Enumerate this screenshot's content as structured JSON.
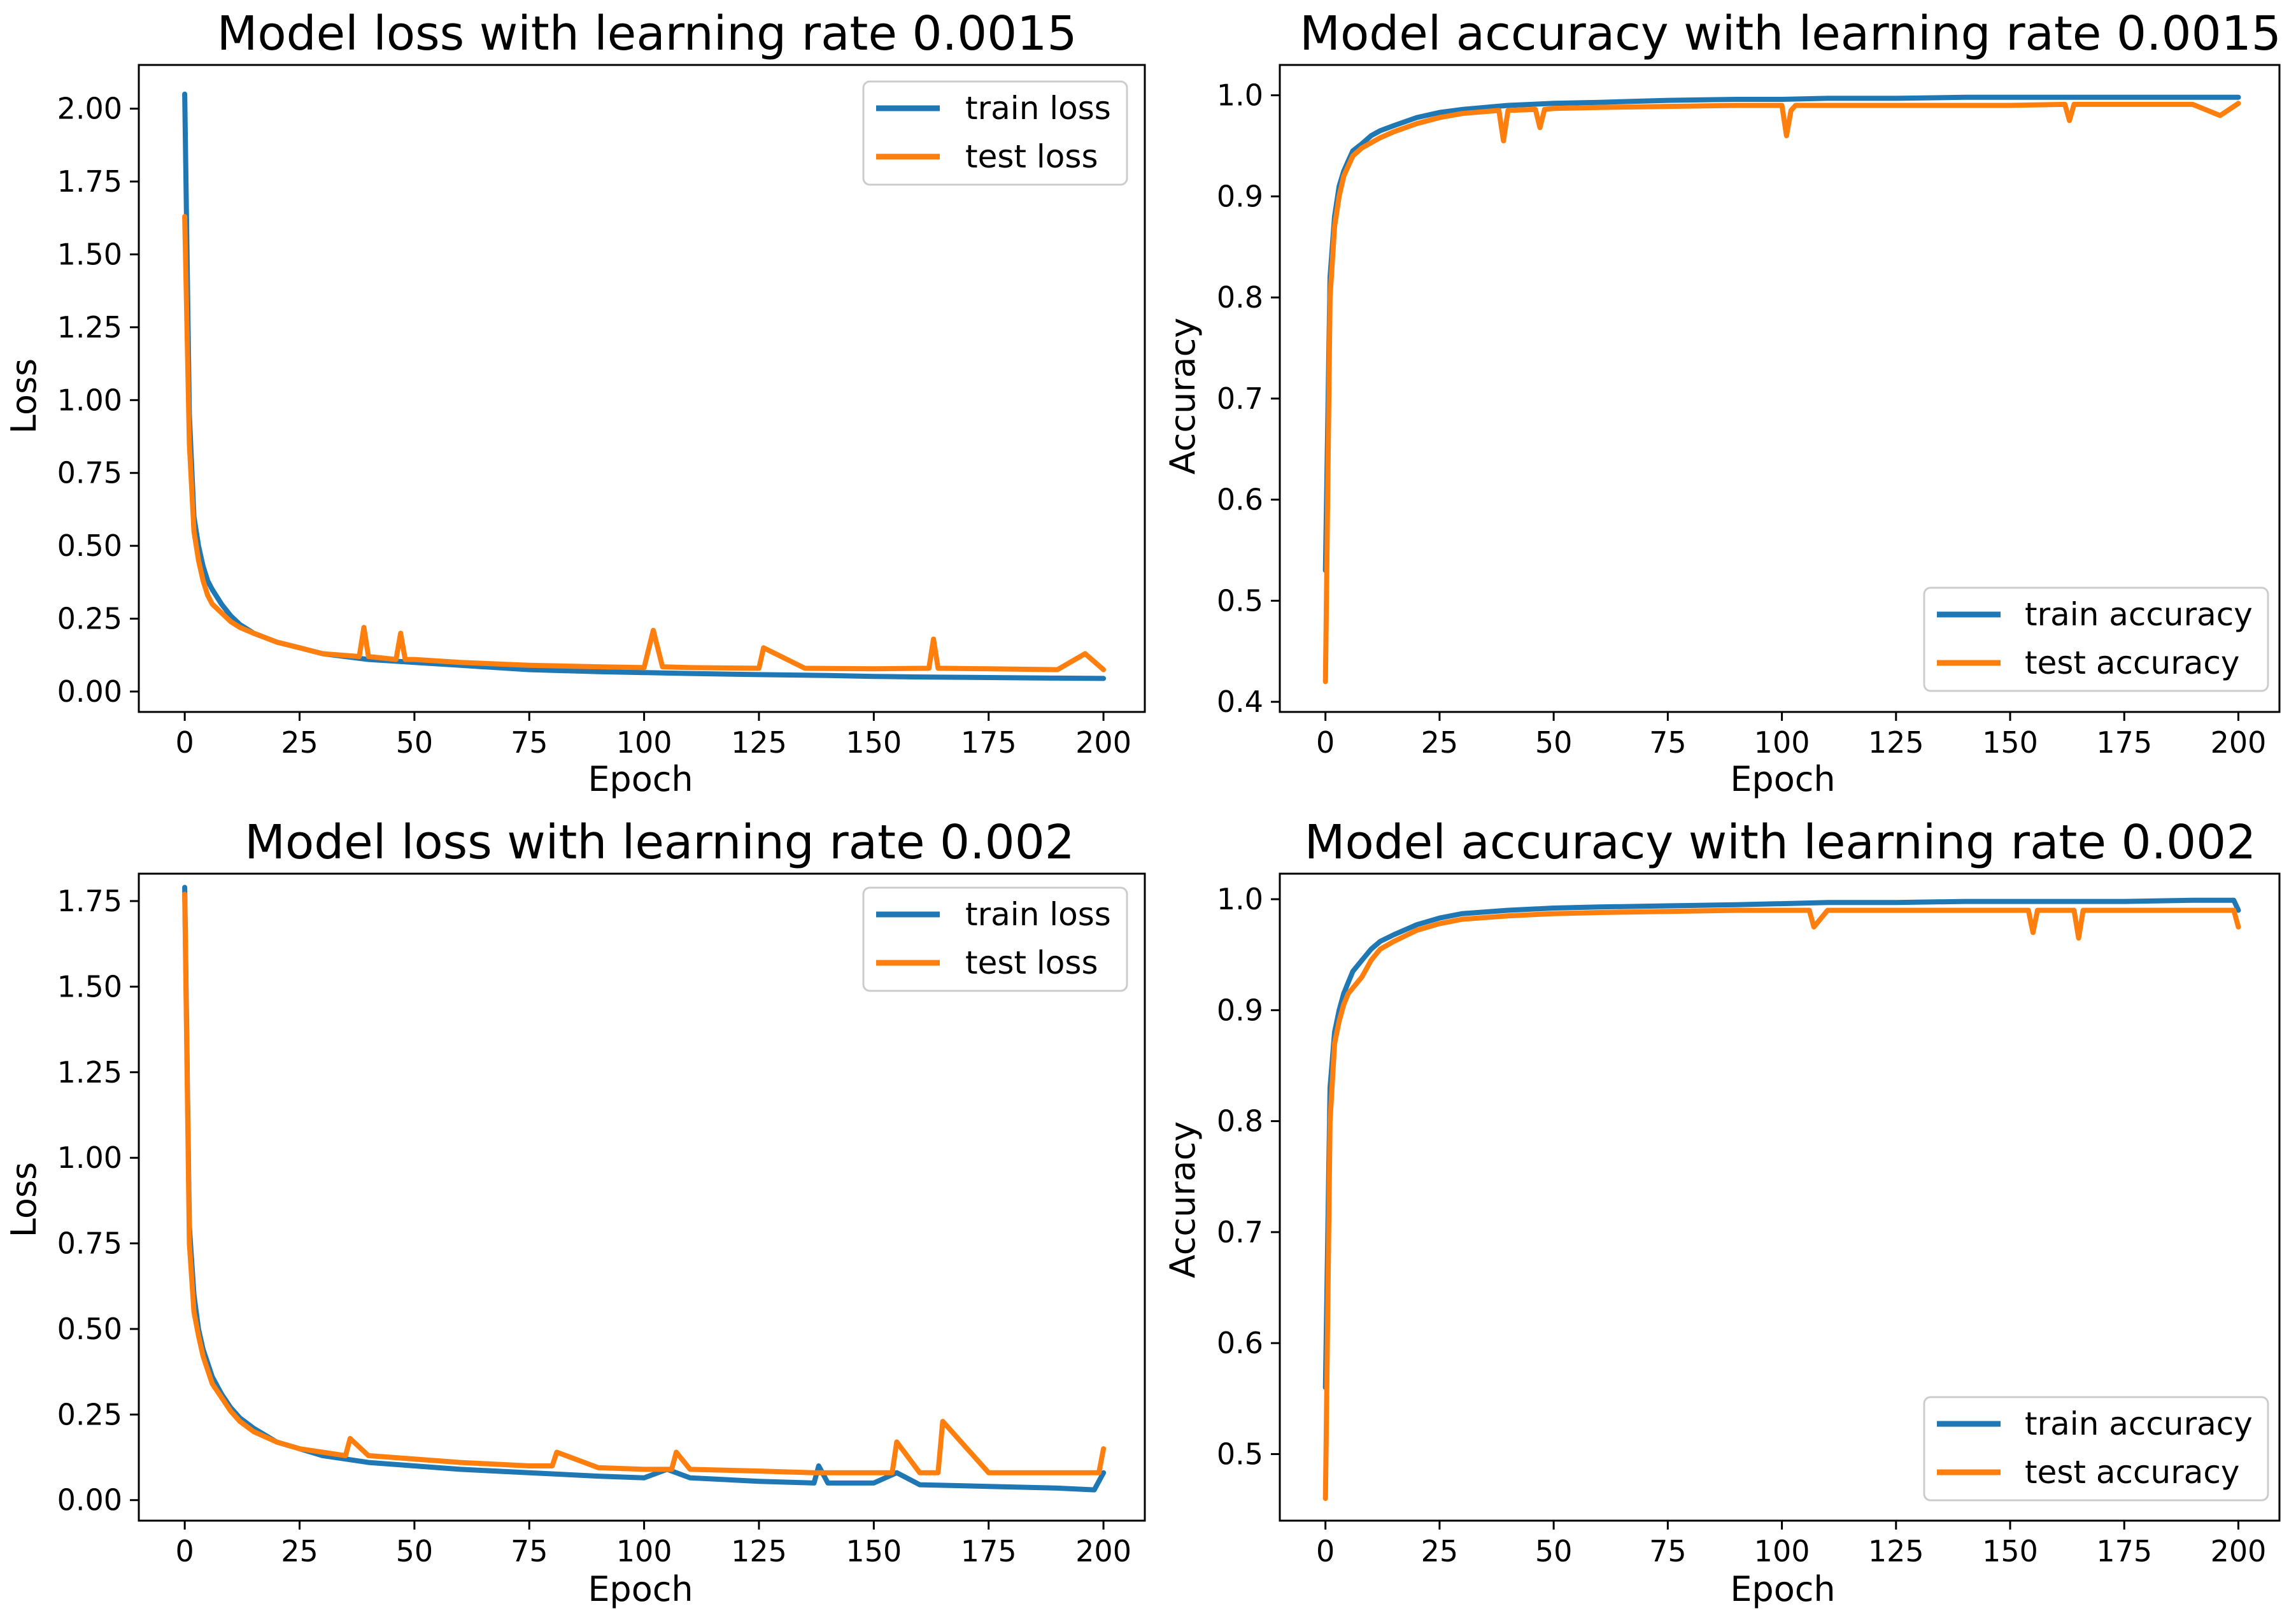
{
  "colors": {
    "train": "#1f77b4",
    "test": "#ff7f0e",
    "frame": "#000000",
    "legend_edge": "#cccccc"
  },
  "chart_data": [
    {
      "id": "loss_lr_0_0015",
      "type": "line",
      "title": "Model loss with learning rate 0.0015",
      "xlabel": "Epoch",
      "ylabel": "Loss",
      "xlim": [
        -10,
        209
      ],
      "ylim": [
        -0.07,
        2.15
      ],
      "xticks": [
        0,
        25,
        50,
        75,
        100,
        125,
        150,
        175,
        200
      ],
      "xtick_labels": [
        "0",
        "25",
        "50",
        "75",
        "100",
        "125",
        "150",
        "175",
        "200"
      ],
      "yticks": [
        0,
        0.25,
        0.5,
        0.75,
        1.0,
        1.25,
        1.5,
        1.75,
        2.0
      ],
      "ytick_labels": [
        "0.00",
        "0.25",
        "0.50",
        "0.75",
        "1.00",
        "1.25",
        "1.50",
        "1.75",
        "2.00"
      ],
      "legend_position": "top-right",
      "series": [
        {
          "name": "train loss",
          "color_key": "train",
          "x": [
            0,
            1,
            2,
            3,
            4,
            5,
            6,
            8,
            10,
            12,
            15,
            20,
            25,
            30,
            40,
            50,
            60,
            75,
            90,
            100,
            110,
            125,
            140,
            150,
            160,
            175,
            190,
            200
          ],
          "values": [
            2.05,
            0.95,
            0.6,
            0.5,
            0.43,
            0.38,
            0.35,
            0.3,
            0.26,
            0.23,
            0.2,
            0.17,
            0.15,
            0.13,
            0.11,
            0.1,
            0.09,
            0.075,
            0.068,
            0.065,
            0.062,
            0.058,
            0.055,
            0.052,
            0.05,
            0.048,
            0.046,
            0.045
          ]
        },
        {
          "name": "test loss",
          "color_key": "test",
          "x": [
            0,
            1,
            2,
            3,
            4,
            5,
            6,
            8,
            10,
            12,
            15,
            20,
            25,
            30,
            38,
            39,
            40,
            46,
            47,
            48,
            50,
            60,
            75,
            90,
            100,
            102,
            104,
            110,
            125,
            126,
            135,
            150,
            162,
            163,
            164,
            175,
            190,
            196,
            200
          ],
          "values": [
            1.63,
            0.85,
            0.55,
            0.45,
            0.38,
            0.33,
            0.3,
            0.27,
            0.24,
            0.22,
            0.2,
            0.17,
            0.15,
            0.13,
            0.12,
            0.22,
            0.12,
            0.11,
            0.2,
            0.11,
            0.11,
            0.1,
            0.09,
            0.085,
            0.082,
            0.21,
            0.085,
            0.082,
            0.08,
            0.15,
            0.08,
            0.078,
            0.08,
            0.18,
            0.08,
            0.078,
            0.075,
            0.13,
            0.075
          ]
        }
      ]
    },
    {
      "id": "accuracy_lr_0_0015",
      "type": "line",
      "title": "Model accuracy with learning rate 0.0015",
      "xlabel": "Epoch",
      "ylabel": "Accuracy",
      "xlim": [
        -10,
        209
      ],
      "ylim": [
        0.39,
        1.03
      ],
      "xticks": [
        0,
        25,
        50,
        75,
        100,
        125,
        150,
        175,
        200
      ],
      "xtick_labels": [
        "0",
        "25",
        "50",
        "75",
        "100",
        "125",
        "150",
        "175",
        "200"
      ],
      "yticks": [
        0.4,
        0.5,
        0.6,
        0.7,
        0.8,
        0.9,
        1.0
      ],
      "ytick_labels": [
        "0.4",
        "0.5",
        "0.6",
        "0.7",
        "0.8",
        "0.9",
        "1.0"
      ],
      "legend_position": "bottom-right",
      "series": [
        {
          "name": "train accuracy",
          "color_key": "train",
          "x": [
            0,
            1,
            2,
            3,
            4,
            5,
            6,
            8,
            10,
            12,
            15,
            20,
            25,
            30,
            40,
            50,
            60,
            75,
            90,
            100,
            110,
            125,
            140,
            150,
            160,
            175,
            190,
            200
          ],
          "values": [
            0.53,
            0.82,
            0.88,
            0.91,
            0.925,
            0.935,
            0.945,
            0.952,
            0.96,
            0.965,
            0.97,
            0.978,
            0.983,
            0.986,
            0.99,
            0.992,
            0.993,
            0.995,
            0.996,
            0.996,
            0.997,
            0.997,
            0.998,
            0.998,
            0.998,
            0.998,
            0.998,
            0.998
          ]
        },
        {
          "name": "test accuracy",
          "color_key": "test",
          "x": [
            0,
            1,
            2,
            3,
            4,
            5,
            6,
            8,
            10,
            12,
            15,
            20,
            25,
            30,
            38,
            39,
            40,
            46,
            47,
            48,
            50,
            60,
            75,
            90,
            100,
            101,
            102,
            103,
            110,
            125,
            135,
            150,
            162,
            163,
            164,
            175,
            190,
            196,
            200
          ],
          "values": [
            0.42,
            0.8,
            0.87,
            0.9,
            0.92,
            0.93,
            0.94,
            0.948,
            0.953,
            0.958,
            0.964,
            0.972,
            0.978,
            0.982,
            0.985,
            0.955,
            0.985,
            0.986,
            0.968,
            0.986,
            0.987,
            0.988,
            0.989,
            0.99,
            0.99,
            0.96,
            0.985,
            0.99,
            0.99,
            0.99,
            0.99,
            0.99,
            0.991,
            0.975,
            0.991,
            0.991,
            0.991,
            0.98,
            0.992
          ]
        }
      ]
    },
    {
      "id": "loss_lr_0_002",
      "type": "line",
      "title": "Model loss with learning rate 0.002",
      "xlabel": "Epoch",
      "ylabel": "Loss",
      "xlim": [
        -10,
        209
      ],
      "ylim": [
        -0.06,
        1.83
      ],
      "xticks": [
        0,
        25,
        50,
        75,
        100,
        125,
        150,
        175,
        200
      ],
      "xtick_labels": [
        "0",
        "25",
        "50",
        "75",
        "100",
        "125",
        "150",
        "175",
        "200"
      ],
      "yticks": [
        0,
        0.25,
        0.5,
        0.75,
        1.0,
        1.25,
        1.5,
        1.75
      ],
      "ytick_labels": [
        "0.00",
        "0.25",
        "0.50",
        "0.75",
        "1.00",
        "1.25",
        "1.50",
        "1.75"
      ],
      "legend_position": "top-right",
      "series": [
        {
          "name": "train loss",
          "color_key": "train",
          "x": [
            0,
            1,
            2,
            3,
            4,
            5,
            6,
            8,
            10,
            12,
            15,
            20,
            25,
            30,
            40,
            50,
            60,
            75,
            90,
            100,
            105,
            110,
            125,
            137,
            138,
            140,
            150,
            155,
            160,
            175,
            190,
            198,
            200
          ],
          "values": [
            1.79,
            0.8,
            0.6,
            0.5,
            0.44,
            0.4,
            0.36,
            0.31,
            0.27,
            0.24,
            0.21,
            0.17,
            0.15,
            0.13,
            0.11,
            0.1,
            0.09,
            0.08,
            0.07,
            0.065,
            0.09,
            0.065,
            0.055,
            0.05,
            0.1,
            0.05,
            0.05,
            0.08,
            0.045,
            0.04,
            0.035,
            0.03,
            0.08
          ]
        },
        {
          "name": "test loss",
          "color_key": "test",
          "x": [
            0,
            1,
            2,
            3,
            4,
            5,
            6,
            8,
            10,
            12,
            15,
            20,
            25,
            30,
            35,
            36,
            40,
            50,
            60,
            75,
            80,
            81,
            90,
            100,
            106,
            107,
            110,
            125,
            137,
            140,
            150,
            154,
            155,
            160,
            164,
            165,
            175,
            190,
            199,
            200
          ],
          "values": [
            1.77,
            0.75,
            0.55,
            0.48,
            0.42,
            0.38,
            0.34,
            0.3,
            0.26,
            0.23,
            0.2,
            0.17,
            0.15,
            0.14,
            0.13,
            0.18,
            0.13,
            0.12,
            0.11,
            0.1,
            0.1,
            0.14,
            0.095,
            0.09,
            0.09,
            0.14,
            0.09,
            0.085,
            0.08,
            0.08,
            0.08,
            0.08,
            0.17,
            0.08,
            0.08,
            0.23,
            0.08,
            0.08,
            0.08,
            0.15
          ]
        }
      ]
    },
    {
      "id": "accuracy_lr_0_002",
      "type": "line",
      "title": "Model accuracy with learning rate 0.002",
      "xlabel": "Epoch",
      "ylabel": "Accuracy",
      "xlim": [
        -10,
        209
      ],
      "ylim": [
        0.44,
        1.023
      ],
      "xticks": [
        0,
        25,
        50,
        75,
        100,
        125,
        150,
        175,
        200
      ],
      "xtick_labels": [
        "0",
        "25",
        "50",
        "75",
        "100",
        "125",
        "150",
        "175",
        "200"
      ],
      "yticks": [
        0.5,
        0.6,
        0.7,
        0.8,
        0.9,
        1.0
      ],
      "ytick_labels": [
        "0.5",
        "0.6",
        "0.7",
        "0.8",
        "0.9",
        "1.0"
      ],
      "legend_position": "bottom-right",
      "series": [
        {
          "name": "train accuracy",
          "color_key": "train",
          "x": [
            0,
            1,
            2,
            3,
            4,
            5,
            6,
            8,
            10,
            12,
            15,
            20,
            25,
            30,
            40,
            50,
            60,
            75,
            90,
            100,
            110,
            125,
            140,
            150,
            160,
            175,
            190,
            199,
            200
          ],
          "values": [
            0.56,
            0.83,
            0.88,
            0.9,
            0.915,
            0.925,
            0.935,
            0.945,
            0.955,
            0.962,
            0.968,
            0.977,
            0.983,
            0.987,
            0.99,
            0.992,
            0.993,
            0.994,
            0.995,
            0.996,
            0.997,
            0.997,
            0.998,
            0.998,
            0.998,
            0.998,
            0.999,
            0.999,
            0.99
          ]
        },
        {
          "name": "test accuracy",
          "color_key": "test",
          "x": [
            0,
            1,
            2,
            3,
            4,
            5,
            6,
            8,
            10,
            12,
            15,
            20,
            25,
            30,
            40,
            50,
            60,
            75,
            90,
            100,
            106,
            107,
            110,
            125,
            140,
            150,
            154,
            155,
            156,
            160,
            164,
            165,
            166,
            175,
            190,
            199,
            200
          ],
          "values": [
            0.46,
            0.8,
            0.87,
            0.89,
            0.905,
            0.915,
            0.92,
            0.93,
            0.945,
            0.955,
            0.962,
            0.972,
            0.978,
            0.982,
            0.985,
            0.987,
            0.988,
            0.989,
            0.99,
            0.99,
            0.99,
            0.975,
            0.99,
            0.99,
            0.99,
            0.99,
            0.99,
            0.97,
            0.99,
            0.99,
            0.99,
            0.965,
            0.99,
            0.99,
            0.99,
            0.99,
            0.975
          ]
        }
      ]
    }
  ]
}
